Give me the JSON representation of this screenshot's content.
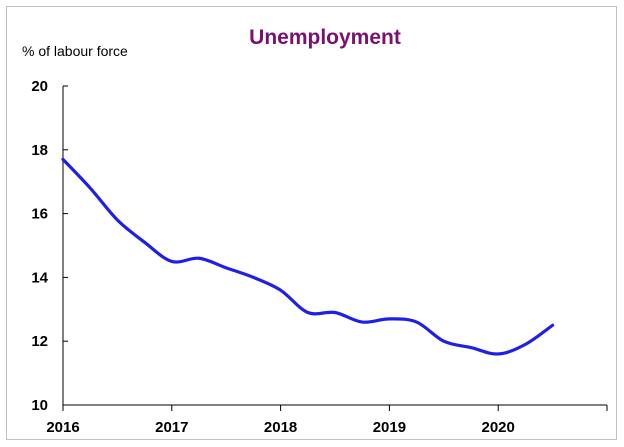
{
  "chart_data": {
    "type": "line",
    "title": "Unemployment",
    "ylabel": "% of labour force",
    "xlabel": "",
    "ylim": [
      10,
      20
    ],
    "xlim": [
      2016,
      2021
    ],
    "y_ticks": [
      10,
      12,
      14,
      16,
      18,
      20
    ],
    "x_ticks": [
      2016,
      2017,
      2018,
      2019,
      2020
    ],
    "grid": false,
    "legend": "none",
    "series": [
      {
        "color": "#1f1fe8",
        "x": [
          2016.0,
          2016.25,
          2016.5,
          2016.75,
          2017.0,
          2017.25,
          2017.5,
          2017.75,
          2018.0,
          2018.25,
          2018.5,
          2018.75,
          2019.0,
          2019.25,
          2019.5,
          2019.75,
          2020.0,
          2020.25,
          2020.5
        ],
        "y": [
          17.7,
          16.8,
          15.8,
          15.1,
          14.5,
          14.6,
          14.3,
          14.0,
          13.6,
          12.9,
          12.9,
          12.6,
          12.7,
          12.6,
          12.0,
          11.8,
          11.6,
          11.9,
          12.5
        ]
      }
    ]
  }
}
